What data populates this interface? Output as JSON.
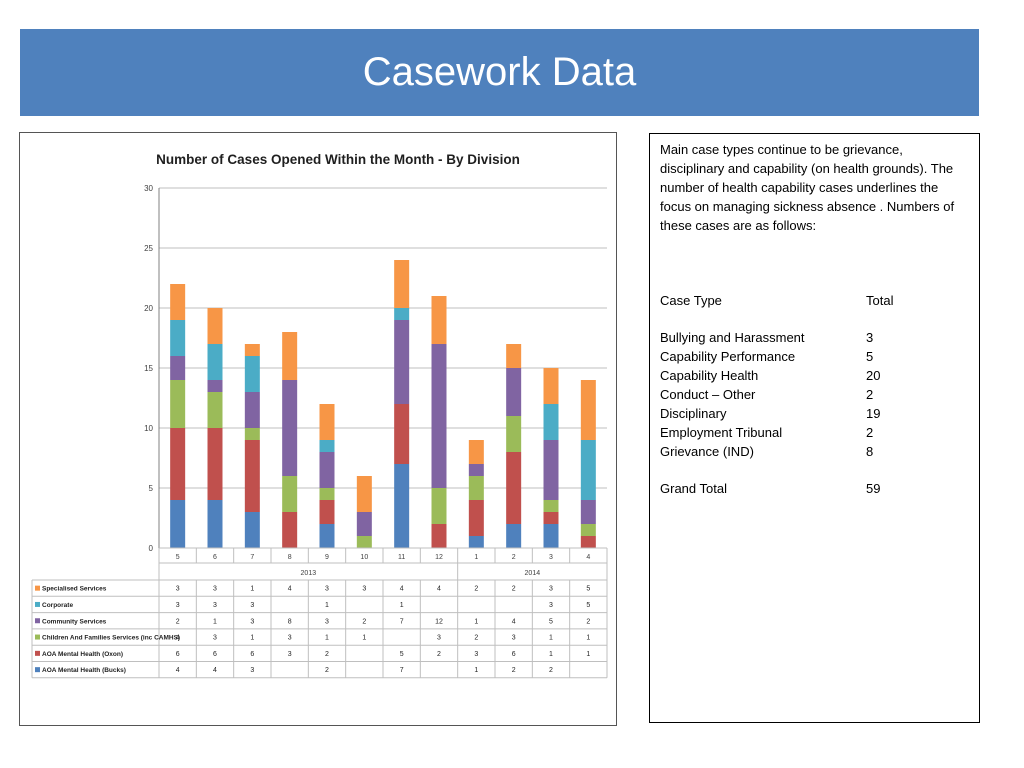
{
  "slide": {
    "title": "Casework Data"
  },
  "chart_data": {
    "type": "bar",
    "stacked": true,
    "title": "Number of Cases Opened Within the Month - By Division",
    "ylim": [
      0,
      30
    ],
    "yticks": [
      0,
      5,
      10,
      15,
      20,
      25,
      30
    ],
    "grid": true,
    "categories": [
      "5",
      "6",
      "7",
      "8",
      "9",
      "10",
      "11",
      "12",
      "1",
      "2",
      "3",
      "4"
    ],
    "year_groups": [
      {
        "label": "2013",
        "span": 8
      },
      {
        "label": "2014",
        "span": 4
      }
    ],
    "series": [
      {
        "name": "AOA Mental Health (Bucks)",
        "color": "#4f81bd",
        "values": [
          4,
          4,
          3,
          null,
          2,
          null,
          7,
          null,
          1,
          2,
          2,
          null
        ]
      },
      {
        "name": "AOA Mental Health (Oxon)",
        "color": "#c0504d",
        "values": [
          6,
          6,
          6,
          3,
          2,
          null,
          5,
          2,
          3,
          6,
          1,
          1
        ]
      },
      {
        "name": "Children And Families Services (inc CAMHS)",
        "color": "#9bbb59",
        "values": [
          4,
          3,
          1,
          3,
          1,
          1,
          null,
          3,
          2,
          3,
          1,
          1
        ]
      },
      {
        "name": "Community Services",
        "color": "#8064a2",
        "values": [
          2,
          1,
          3,
          8,
          3,
          2,
          7,
          12,
          1,
          4,
          5,
          2
        ]
      },
      {
        "name": "Corporate",
        "color": "#4bacc6",
        "values": [
          3,
          3,
          3,
          null,
          1,
          null,
          1,
          null,
          null,
          null,
          3,
          5
        ]
      },
      {
        "name": "Specialised Services",
        "color": "#f79646",
        "values": [
          3,
          3,
          1,
          4,
          3,
          3,
          4,
          4,
          2,
          2,
          3,
          5
        ]
      }
    ]
  },
  "notes": {
    "intro": "Main case types continue to be grievance, disciplinary and capability (on health grounds). The number of health capability cases underlines the focus on managing sickness absence .  Numbers of these cases are as follows:",
    "header": {
      "type": "Case Type",
      "total": "Total"
    },
    "rows": [
      {
        "type": "Bullying and Harassment",
        "total": "3"
      },
      {
        "type": "Capability Performance",
        "total": "5"
      },
      {
        "type": "Capability Health",
        "total": "20"
      },
      {
        "type": "Conduct – Other",
        "total": "2"
      },
      {
        "type": "Disciplinary",
        "total": "19"
      },
      {
        "type": "Employment Tribunal",
        "total": "2"
      },
      {
        "type": "Grievance (IND)",
        "total": "8"
      }
    ],
    "grand": {
      "type": "Grand Total",
      "total": "59"
    }
  }
}
